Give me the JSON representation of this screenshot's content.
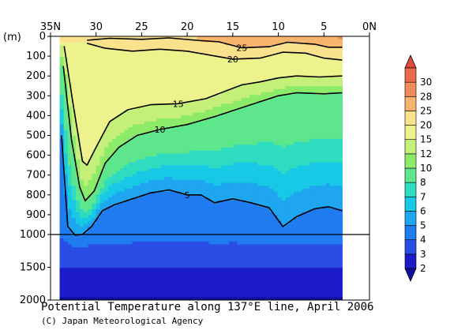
{
  "chart_data": {
    "type": "heatmap",
    "title": "Potential Temperature along 137°E line, April 2006",
    "credit": "(C) Japan Meteorological Agency",
    "x_ticks": [
      {
        "lat": 35,
        "label": "35N"
      },
      {
        "lat": 30,
        "label": "30"
      },
      {
        "lat": 25,
        "label": "25"
      },
      {
        "lat": 20,
        "label": "20"
      },
      {
        "lat": 15,
        "label": "15"
      },
      {
        "lat": 10,
        "label": "10"
      },
      {
        "lat": 5,
        "label": "5"
      },
      {
        "lat": 0,
        "label": "0N"
      }
    ],
    "xlim": [
      35,
      0
    ],
    "y_unit": "(m)",
    "y_ticks_upper": [
      0,
      100,
      200,
      300,
      400,
      500,
      600,
      700,
      800,
      900,
      1000
    ],
    "y_ticks_lower": [
      1500,
      2000
    ],
    "y_break": 1000,
    "ylim": [
      0,
      2000
    ],
    "data_lat_range": [
      34,
      3
    ],
    "colorbar": {
      "levels": [
        2,
        3,
        4,
        5,
        6,
        7,
        8,
        10,
        12,
        15,
        20,
        25,
        28,
        30
      ],
      "colors": [
        "#1c1cc8",
        "#2a4de6",
        "#1e7cf0",
        "#1ea6f0",
        "#18c9e6",
        "#30dcc0",
        "#5ee68c",
        "#8cec6a",
        "#c4f07a",
        "#eef28c",
        "#fae28c",
        "#f7b46c",
        "#f08c5a",
        "#ec6a4c"
      ],
      "low_color": "#1010a0",
      "high_color": "#e04a3c"
    },
    "isotherms": [
      {
        "value": 25,
        "label": "25",
        "points": [
          [
            31,
            20
          ],
          [
            28.5,
            10
          ],
          [
            25,
            15
          ],
          [
            22,
            8
          ],
          [
            19,
            20
          ],
          [
            16.5,
            28
          ],
          [
            14,
            58
          ],
          [
            11,
            52
          ],
          [
            9,
            30
          ],
          [
            6,
            40
          ],
          [
            4.5,
            55
          ],
          [
            3,
            55
          ]
        ]
      },
      {
        "value": 20,
        "label": "20",
        "points": [
          [
            31,
            35
          ],
          [
            29,
            60
          ],
          [
            26,
            75
          ],
          [
            23,
            65
          ],
          [
            20,
            75
          ],
          [
            17.5,
            95
          ],
          [
            15,
            115
          ],
          [
            12,
            110
          ],
          [
            9.5,
            80
          ],
          [
            7,
            85
          ],
          [
            5,
            110
          ],
          [
            3,
            120
          ]
        ]
      },
      {
        "value": 15,
        "label": "15",
        "points": [
          [
            33.5,
            50
          ],
          [
            32.5,
            350
          ],
          [
            31.5,
            630
          ],
          [
            31,
            650
          ],
          [
            30,
            560
          ],
          [
            28.5,
            430
          ],
          [
            26.5,
            370
          ],
          [
            24,
            345
          ],
          [
            21,
            340
          ],
          [
            18,
            315
          ],
          [
            16,
            280
          ],
          [
            14,
            245
          ],
          [
            12,
            230
          ],
          [
            10,
            210
          ],
          [
            8,
            200
          ],
          [
            5.5,
            205
          ],
          [
            3,
            200
          ]
        ]
      },
      {
        "value": 10,
        "label": "10",
        "points": [
          [
            33.6,
            150
          ],
          [
            32.7,
            520
          ],
          [
            31.8,
            760
          ],
          [
            31.2,
            830
          ],
          [
            30.2,
            780
          ],
          [
            29,
            640
          ],
          [
            27.5,
            560
          ],
          [
            25.5,
            500
          ],
          [
            23,
            470
          ],
          [
            20,
            445
          ],
          [
            17,
            405
          ],
          [
            15,
            375
          ],
          [
            12,
            330
          ],
          [
            10,
            300
          ],
          [
            8,
            285
          ],
          [
            5,
            290
          ],
          [
            3,
            285
          ]
        ]
      },
      {
        "value": 5,
        "label": "5",
        "points": [
          [
            33.8,
            500
          ],
          [
            33.1,
            960
          ],
          [
            32.3,
            1010
          ],
          [
            31.5,
            1000
          ],
          [
            30.5,
            960
          ],
          [
            29.3,
            880
          ],
          [
            28,
            850
          ],
          [
            26,
            820
          ],
          [
            24,
            790
          ],
          [
            22,
            775
          ],
          [
            20,
            800
          ],
          [
            18.5,
            800
          ],
          [
            17,
            840
          ],
          [
            15,
            820
          ],
          [
            13,
            840
          ],
          [
            11,
            865
          ],
          [
            9.5,
            960
          ],
          [
            8,
            910
          ],
          [
            6,
            870
          ],
          [
            4.5,
            860
          ],
          [
            3,
            880
          ]
        ]
      }
    ]
  }
}
